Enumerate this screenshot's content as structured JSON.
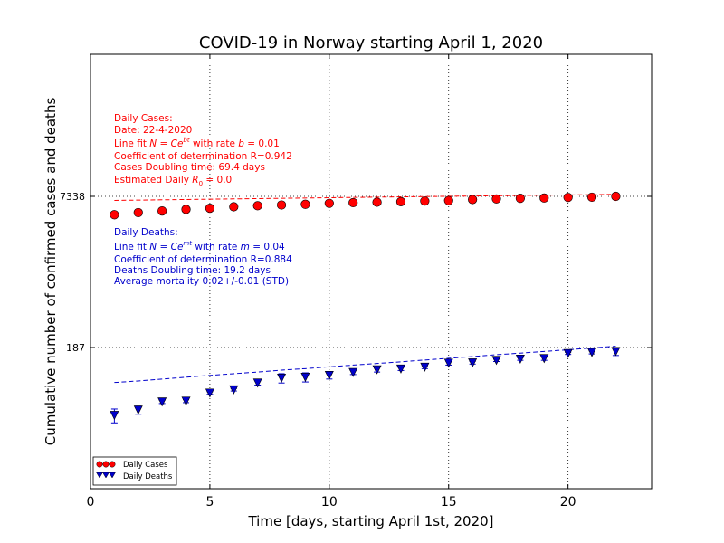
{
  "chart_data": {
    "type": "scatter",
    "title": "COVID-19 in Norway starting April 1, 2020",
    "xlabel": "Time [days, starting April 1st, 2020]",
    "ylabel": "Cumulative number of confirmed cases and deaths",
    "xlim": [
      0,
      23.5
    ],
    "xticks": [
      0,
      5,
      10,
      15,
      20
    ],
    "yscale": "log",
    "yticks": [
      {
        "value": 7338,
        "label": "7338"
      },
      {
        "value": 187,
        "label": "187"
      }
    ],
    "grid": true,
    "legend_position": "lower-left",
    "x": [
      1,
      2,
      3,
      4,
      5,
      6,
      7,
      8,
      9,
      10,
      11,
      12,
      13,
      14,
      15,
      16,
      17,
      18,
      19,
      20,
      21,
      22
    ],
    "series": [
      {
        "name": "Daily Cases",
        "color": "#ff0000",
        "marker": "circle",
        "values": [
          4700,
          4950,
          5150,
          5350,
          5500,
          5700,
          5850,
          5950,
          6050,
          6200,
          6300,
          6370,
          6450,
          6550,
          6620,
          6800,
          6900,
          7000,
          7050,
          7150,
          7190,
          7338
        ],
        "fit": [
          6650,
          6700,
          6750,
          6800,
          6850,
          6900,
          6950,
          7000,
          7050,
          7100,
          7150,
          7200,
          7250,
          7300,
          7350,
          7400,
          7450,
          7500,
          7550,
          7600,
          7650,
          7700
        ]
      },
      {
        "name": "Daily Deaths",
        "color": "#0000cc",
        "marker": "triangle-down",
        "values": [
          36,
          41,
          50,
          51,
          62,
          67,
          79,
          89,
          91,
          95,
          102,
          109,
          111,
          116,
          128,
          129,
          137,
          141,
          143,
          162,
          166,
          170
        ],
        "errors": [
          6,
          4,
          2,
          2,
          2,
          2,
          4,
          10,
          10,
          8,
          5,
          6,
          4,
          4,
          6,
          4,
          4,
          4,
          6,
          4,
          6,
          16
        ],
        "fit": [
          80,
          83,
          87,
          91,
          95,
          99,
          103,
          108,
          112,
          117,
          122,
          127,
          132,
          138,
          144,
          150,
          157,
          163,
          170,
          177,
          185,
          193
        ]
      }
    ]
  },
  "annotations": {
    "cases": {
      "heading": "Daily Cases:",
      "date": "Date: 22-4-2020",
      "fit_prefix": "Line fit ",
      "fit_formula": "N = Ce",
      "fit_exponent": "bt",
      "fit_middle": " with rate ",
      "fit_rate_symbol": "b",
      "fit_rate_value": " = 0.01",
      "coef": "Coefficient of determination R=0.942",
      "doubling": "Cases Doubling time: 69.4 days",
      "r0_prefix": "Estimated Daily ",
      "r0_symbol": "R",
      "r0_sub": "0",
      "r0_value": " = 0.0"
    },
    "deaths": {
      "heading": "Daily Deaths:",
      "fit_prefix": "Line fit ",
      "fit_formula": "N = Ce",
      "fit_exponent": "mt",
      "fit_middle": " with rate ",
      "fit_rate_symbol": "m",
      "fit_rate_value": " = 0.04",
      "coef": "Coefficient of determination R=0.884",
      "doubling": "Deaths Doubling time: 19.2 days",
      "mortality": "Average mortality 0.02+/-0.01 (STD)"
    }
  }
}
